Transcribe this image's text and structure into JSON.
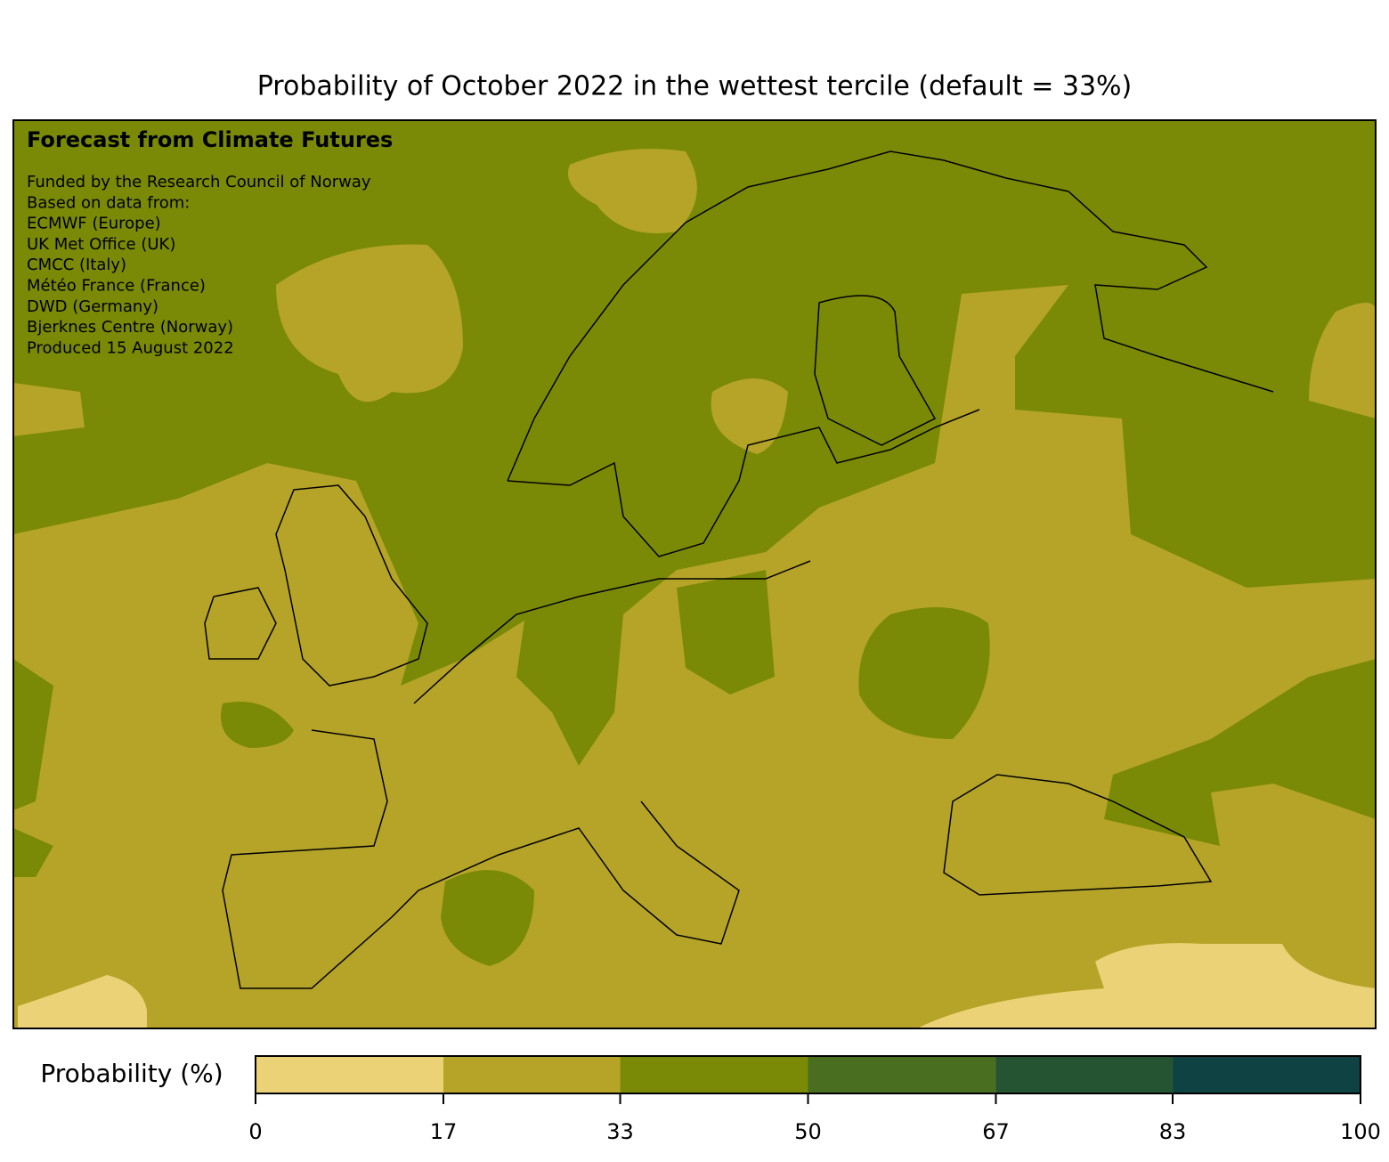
{
  "title": "Probability of October 2022 in the wettest tercile (default = 33%)",
  "annotation": {
    "heading": "Forecast from Climate Futures",
    "lines": [
      "Funded by the Research Council of Norway",
      "Based on data from:",
      "ECMWF (Europe)",
      "UK Met Office (UK)",
      "CMCC (Italy)",
      "Météo France (France)",
      "DWD (Germany)",
      "Bjerknes Centre (Norway)",
      "Produced 15 August 2022"
    ]
  },
  "colorbar": {
    "label": "Probability (%)",
    "bounds": [
      0,
      17,
      33,
      50,
      67,
      83,
      100
    ],
    "colors": [
      "#ecd277",
      "#b5a428",
      "#7a8a06",
      "#4a6e20",
      "#245432",
      "#0f4343"
    ]
  }
}
